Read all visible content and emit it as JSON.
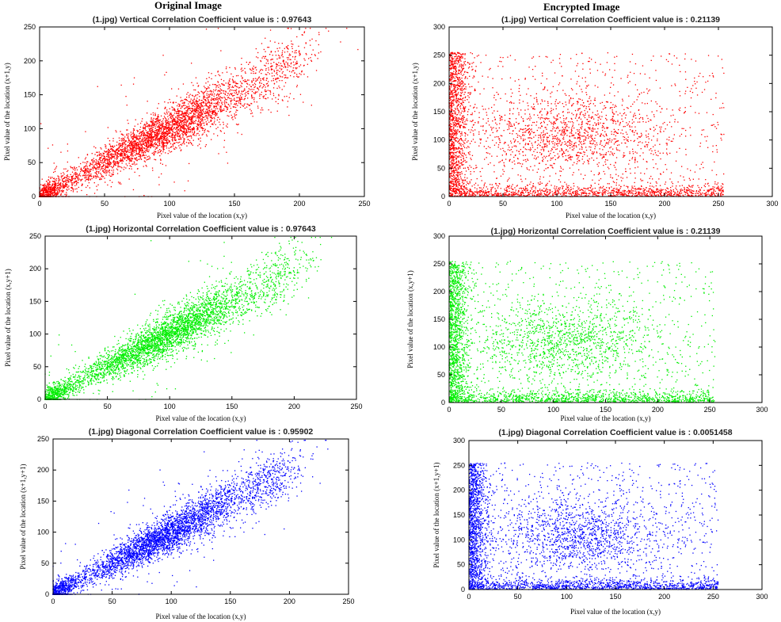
{
  "headers": {
    "original": "Original Image",
    "encrypted": "Encrypted Image"
  },
  "chart_data": [
    {
      "type": "scatter",
      "id": "orig-vertical",
      "title": "(1.jpg)  Vertical  Correlation Coefficient value is : 0.97643",
      "xlabel": "Pixel value of the location (x,y)",
      "ylabel": "Pixel value of the location (x+1,y)",
      "xlim": [
        0,
        250
      ],
      "ylim": [
        0,
        250
      ],
      "xticks": [
        0,
        50,
        100,
        150,
        200,
        250
      ],
      "yticks": [
        0,
        50,
        100,
        150,
        200,
        250
      ],
      "color": "#ff0000",
      "pattern": "correlated",
      "correlation": 0.97643,
      "grid": false
    },
    {
      "type": "scatter",
      "id": "enc-vertical",
      "title": "(1.jpg)  Vertical  Correlation Coefficient value is : 0.21139",
      "xlabel": "Pixel value of the location (x,y)",
      "ylabel": "Pixel value of the location (x+1,y)",
      "xlim": [
        0,
        300
      ],
      "ylim": [
        0,
        300
      ],
      "xticks": [
        0,
        50,
        100,
        150,
        200,
        250,
        300
      ],
      "yticks": [
        0,
        50,
        100,
        150,
        200,
        250,
        300
      ],
      "color": "#ff0000",
      "pattern": "encrypted",
      "correlation": 0.21139,
      "grid": false
    },
    {
      "type": "scatter",
      "id": "orig-horizontal",
      "title": "(1.jpg) Horizontal  Correlation Coefficient value is : 0.97643",
      "xlabel": "Pixel value of the location (x,y)",
      "ylabel": "Pixel value of the location (x,y+1)",
      "xlim": [
        0,
        250
      ],
      "ylim": [
        0,
        250
      ],
      "xticks": [
        0,
        50,
        100,
        150,
        200,
        250
      ],
      "yticks": [
        0,
        50,
        100,
        150,
        200,
        250
      ],
      "color": "#00ee00",
      "pattern": "correlated",
      "correlation": 0.97643,
      "grid": false
    },
    {
      "type": "scatter",
      "id": "enc-horizontal",
      "title": "(1.jpg) Horizontal  Correlation Coefficient value is : 0.21139",
      "xlabel": "Pixel value of the location (x,y)",
      "ylabel": "Pixel value of the location (x,y+1)",
      "xlim": [
        0,
        300
      ],
      "ylim": [
        0,
        300
      ],
      "xticks": [
        0,
        50,
        100,
        150,
        200,
        250,
        300
      ],
      "yticks": [
        0,
        50,
        100,
        150,
        200,
        250,
        300
      ],
      "color": "#00ee00",
      "pattern": "encrypted",
      "correlation": 0.21139,
      "grid": false
    },
    {
      "type": "scatter",
      "id": "orig-diagonal",
      "title": "(1.jpg)  Diagonal  Correlation Coefficient value is : 0.95902",
      "xlabel": "Pixel value of the location (x,y)",
      "ylabel": "Pixel value of the location (x+1,y+1)",
      "xlim": [
        0,
        250
      ],
      "ylim": [
        0,
        250
      ],
      "xticks": [
        0,
        50,
        100,
        150,
        200,
        250
      ],
      "yticks": [
        0,
        50,
        100,
        150,
        200,
        250
      ],
      "color": "#0000ff",
      "pattern": "correlated",
      "correlation": 0.95902,
      "grid": false
    },
    {
      "type": "scatter",
      "id": "enc-diagonal",
      "title": "(1.jpg)  Diagonal  Correlation Coefficient value is : 0.0051458",
      "xlabel": "Pixel value of the location (x,y)",
      "ylabel": "Pixel value of the location (x+1,y+1)",
      "xlim": [
        0,
        300
      ],
      "ylim": [
        0,
        300
      ],
      "xticks": [
        0,
        50,
        100,
        150,
        200,
        250,
        300
      ],
      "yticks": [
        0,
        50,
        100,
        150,
        200,
        250,
        300
      ],
      "color": "#0000ff",
      "pattern": "encrypted",
      "correlation": 0.0051458,
      "grid": false
    }
  ]
}
